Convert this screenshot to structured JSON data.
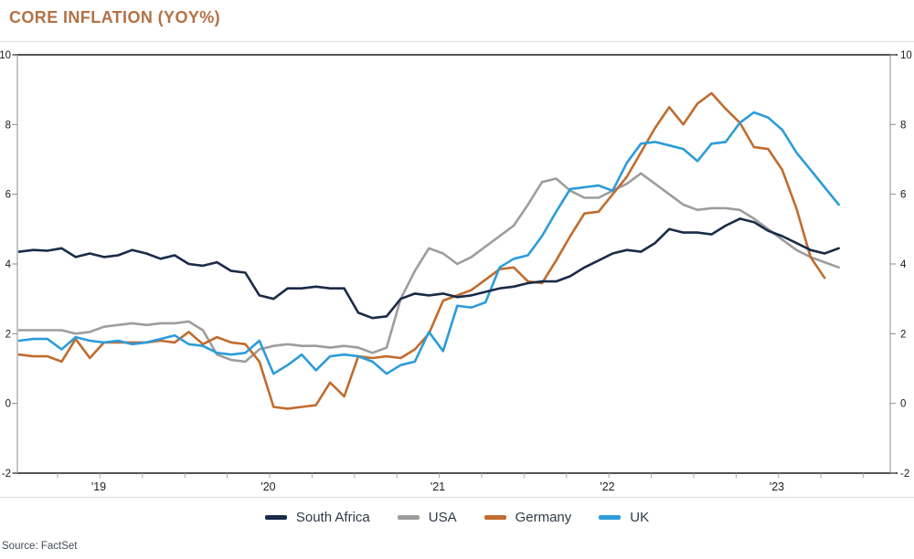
{
  "title": "CORE INFLATION (YOY%)",
  "source": "Source: FactSet",
  "colors": {
    "title": "#b37245",
    "frame_dark": "#3b3b3b",
    "frame_light": "#8c8c8c",
    "tick": "#a9a9a9",
    "divider": "#dcdcdc",
    "legend_text": "#2e3a47"
  },
  "chart_data": {
    "type": "line",
    "title": "CORE INFLATION (YOY%)",
    "xlabel": "",
    "ylabel": "",
    "x_tick_labels": [
      "'19",
      "'20",
      "'21",
      "'22",
      "'23"
    ],
    "y_ticks": [
      10,
      8,
      6,
      4,
      2,
      0,
      -2
    ],
    "ylim": [
      -2,
      10
    ],
    "y_axis_sides": "both",
    "grid": false,
    "legend_position": "bottom",
    "series": [
      {
        "name": "South Africa",
        "color": "#1a2b49",
        "z": 4,
        "values": [
          4.35,
          4.4,
          4.38,
          4.45,
          4.2,
          4.3,
          4.2,
          4.25,
          4.4,
          4.3,
          4.15,
          4.25,
          4.0,
          3.95,
          4.05,
          3.8,
          3.75,
          3.1,
          3.0,
          3.3,
          3.3,
          3.35,
          3.3,
          3.3,
          2.6,
          2.45,
          2.5,
          3.0,
          3.15,
          3.1,
          3.15,
          3.05,
          3.1,
          3.2,
          3.3,
          3.35,
          3.45,
          3.5,
          3.5,
          3.65,
          3.9,
          4.1,
          4.3,
          4.4,
          4.35,
          4.6,
          5.0,
          4.9,
          4.9,
          4.85,
          5.1,
          5.3,
          5.2,
          4.95,
          4.8,
          4.6,
          4.4,
          4.3,
          4.45
        ]
      },
      {
        "name": "USA",
        "color": "#9d9d9d",
        "z": 1,
        "values": [
          2.1,
          2.1,
          2.1,
          2.1,
          2.0,
          2.05,
          2.2,
          2.25,
          2.3,
          2.25,
          2.3,
          2.3,
          2.35,
          2.1,
          1.4,
          1.25,
          1.2,
          1.55,
          1.65,
          1.7,
          1.65,
          1.65,
          1.6,
          1.65,
          1.6,
          1.45,
          1.6,
          3.0,
          3.8,
          4.45,
          4.3,
          4.0,
          4.2,
          4.5,
          4.8,
          5.1,
          5.7,
          6.35,
          6.45,
          6.1,
          5.9,
          5.9,
          6.1,
          6.3,
          6.6,
          6.3,
          6.0,
          5.7,
          5.55,
          5.6,
          5.6,
          5.55,
          5.3,
          5.0,
          4.7,
          4.4,
          4.2,
          4.05,
          3.9
        ]
      },
      {
        "name": "Germany",
        "color": "#c16c2e",
        "z": 2,
        "values": [
          1.4,
          1.35,
          1.35,
          1.2,
          1.85,
          1.3,
          1.75,
          1.75,
          1.75,
          1.75,
          1.8,
          1.75,
          2.05,
          1.7,
          1.9,
          1.75,
          1.7,
          1.2,
          -0.1,
          -0.15,
          -0.1,
          -0.05,
          0.6,
          0.2,
          1.35,
          1.3,
          1.35,
          1.3,
          1.55,
          2.0,
          2.95,
          3.1,
          3.25,
          3.55,
          3.85,
          3.9,
          3.5,
          3.45,
          4.1,
          4.8,
          5.45,
          5.5,
          6.0,
          6.5,
          7.2,
          7.9,
          8.5,
          8.0,
          8.6,
          8.9,
          8.45,
          8.05,
          7.35,
          7.3,
          6.7,
          5.6,
          4.2,
          3.6
        ]
      },
      {
        "name": "UK",
        "color": "#2c9cd9",
        "z": 3,
        "values": [
          1.8,
          1.85,
          1.85,
          1.55,
          1.9,
          1.8,
          1.75,
          1.8,
          1.7,
          1.75,
          1.85,
          1.95,
          1.7,
          1.65,
          1.45,
          1.4,
          1.45,
          1.8,
          0.85,
          1.1,
          1.4,
          0.95,
          1.35,
          1.4,
          1.35,
          1.2,
          0.85,
          1.1,
          1.2,
          2.05,
          1.5,
          2.8,
          2.75,
          2.9,
          3.9,
          4.15,
          4.25,
          4.8,
          5.5,
          6.15,
          6.2,
          6.25,
          6.1,
          6.9,
          7.45,
          7.5,
          7.4,
          7.3,
          6.95,
          7.45,
          7.5,
          8.05,
          8.35,
          8.2,
          7.85,
          7.2,
          6.7,
          6.2,
          5.7
        ]
      }
    ]
  }
}
